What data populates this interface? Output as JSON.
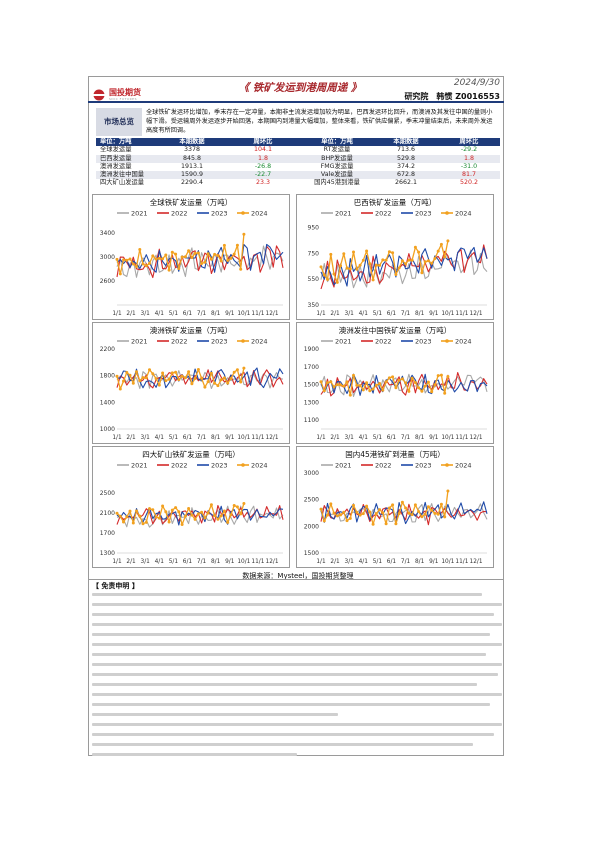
{
  "header": {
    "logo_text": "国投期货",
    "logo_sub": "SDIC FUTURES",
    "date": "2024/9/30",
    "title": "《 铁矿发运到港周周递 》",
    "author": "研究院　韩惯 Z0016553"
  },
  "summary": {
    "label": "市场总览",
    "text": "全球铁矿发运环比增加，季末存在一定冲量，本期非主流发运增加较为明显，巴西发运环比回升，而澳洲及其发往中国的量则小幅下滑。受运输周外发运逐步开始回落，本期国内到港量大幅增加，整体来看，铁矿供应偏紧，季末冲量结束后，未来周外发运高度有所回调。"
  },
  "stats": {
    "header": [
      "单位：万吨",
      "本期数据",
      "周环比",
      "单位：万吨",
      "本期数据",
      "周环比"
    ],
    "rows": [
      [
        "全球发运量",
        "3378",
        "104.1",
        "RT发运量",
        "713.6",
        "-29.2"
      ],
      [
        "巴西发运量",
        "845.8",
        "1.8",
        "BHP发运量",
        "529.8",
        "1.8"
      ],
      [
        "澳洲发运量",
        "1913.1",
        "-26.8",
        "FMG发运量",
        "374.2",
        "-31.0"
      ],
      [
        "澳洲发往中国量",
        "1590.9",
        "-22.7",
        "Vale发运量",
        "672.8",
        "81.7"
      ],
      [
        "四大矿山发运量",
        "2290.4",
        "23.3",
        "国内45港到港量",
        "2662.1",
        "520.2"
      ]
    ]
  },
  "colors": {
    "y2021": "#a8a8a8",
    "y2022": "#d42a2a",
    "y2023": "#1f4aa8",
    "y2024": "#f2a11f"
  },
  "x_ticks": [
    "1/1",
    "2/1",
    "3/1",
    "4/1",
    "5/1",
    "6/1",
    "7/1",
    "8/1",
    "9/1",
    "10/1",
    "11/1",
    "12/1"
  ],
  "chart_data": [
    {
      "type": "line",
      "title": "全球铁矿发运量（万吨）",
      "ylim": [
        2200,
        3600
      ],
      "yticks": [
        2600,
        3000,
        3400
      ],
      "series": [
        {
          "name": "2021"
        },
        {
          "name": "2022"
        },
        {
          "name": "2023"
        },
        {
          "name": "2024"
        }
      ],
      "base": 2950,
      "trend": 150,
      "amp": 220,
      "last2024": 3378
    },
    {
      "type": "line",
      "title": "巴西铁矿发运量（万吨）",
      "ylim": [
        350,
        1000
      ],
      "yticks": [
        350,
        550,
        750,
        950
      ],
      "series": [
        {
          "name": "2021"
        },
        {
          "name": "2022"
        },
        {
          "name": "2023"
        },
        {
          "name": "2024"
        }
      ],
      "base": 660,
      "trend": 160,
      "amp": 110,
      "last2024": 845.8
    },
    {
      "type": "line",
      "title": "澳洲铁矿发运量（万吨）",
      "ylim": [
        1000,
        2200
      ],
      "yticks": [
        1000,
        1400,
        1800,
        2200
      ],
      "series": [
        {
          "name": "2021"
        },
        {
          "name": "2022"
        },
        {
          "name": "2023"
        },
        {
          "name": "2024"
        }
      ],
      "base": 1760,
      "trend": 40,
      "amp": 140,
      "last2024": 1913.1
    },
    {
      "type": "line",
      "title": "澳洲发往中国铁矿发运量（万吨）",
      "ylim": [
        1000,
        1900
      ],
      "yticks": [
        1100,
        1300,
        1500,
        1700,
        1900
      ],
      "series": [
        {
          "name": "2021"
        },
        {
          "name": "2022"
        },
        {
          "name": "2023"
        },
        {
          "name": "2024"
        }
      ],
      "base": 1500,
      "trend": 30,
      "amp": 120,
      "last2024": 1590.9
    },
    {
      "type": "line",
      "title": "四大矿山铁矿发运量（万吨）",
      "ylim": [
        1300,
        2900
      ],
      "yticks": [
        1300,
        1700,
        2100,
        2500
      ],
      "series": [
        {
          "name": "2021"
        },
        {
          "name": "2022"
        },
        {
          "name": "2023"
        },
        {
          "name": "2024"
        }
      ],
      "base": 2050,
      "trend": 80,
      "amp": 180,
      "last2024": 2290.4
    },
    {
      "type": "line",
      "title": "国内45港铁矿到港量（万吨）",
      "ylim": [
        1500,
        3000
      ],
      "yticks": [
        1500,
        2000,
        2500,
        3000
      ],
      "series": [
        {
          "name": "2021"
        },
        {
          "name": "2022"
        },
        {
          "name": "2023"
        },
        {
          "name": "2024"
        }
      ],
      "base": 2250,
      "trend": 30,
      "amp": 200,
      "last2024": 2662.1
    }
  ],
  "source": "数据来源：Mysteel，国投期货整理",
  "disclaimer": {
    "title": "【 免责申明 】"
  }
}
